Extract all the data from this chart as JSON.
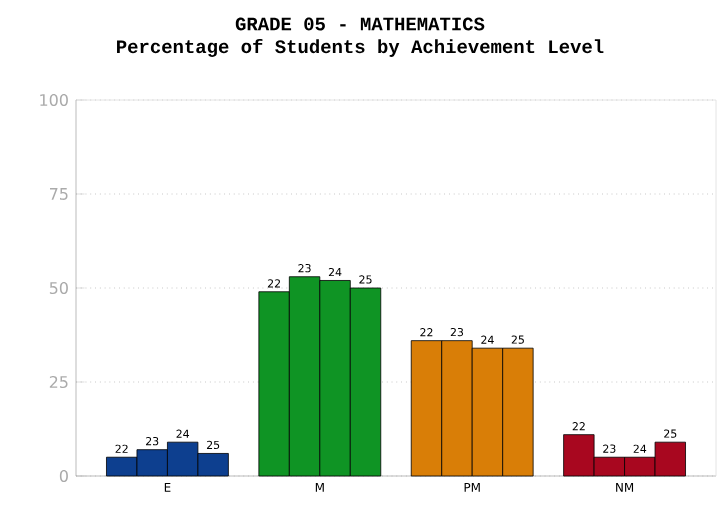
{
  "chart_data": {
    "type": "bar",
    "title": "GRADE 05 - MATHEMATICS",
    "subtitle": "Percentage of Students by Achievement Level",
    "categories": [
      "E",
      "M",
      "PM",
      "NM"
    ],
    "series": [
      {
        "name": "22",
        "colors": [
          "#0d3f8f",
          "#0f9424",
          "#d97e07",
          "#a8071f"
        ],
        "values": [
          5,
          49,
          36,
          11
        ]
      },
      {
        "name": "23",
        "colors": [
          "#0d3f8f",
          "#0f9424",
          "#d97e07",
          "#a8071f"
        ],
        "values": [
          7,
          53,
          36,
          5
        ]
      },
      {
        "name": "24",
        "colors": [
          "#0d3f8f",
          "#0f9424",
          "#d97e07",
          "#a8071f"
        ],
        "values": [
          9,
          52,
          34,
          5
        ]
      },
      {
        "name": "25",
        "colors": [
          "#0d3f8f",
          "#0f9424",
          "#d97e07",
          "#a8071f"
        ],
        "values": [
          6,
          50,
          34,
          9
        ]
      }
    ],
    "ylim": [
      0,
      100
    ],
    "yticks": [
      0,
      25,
      50,
      75,
      100
    ],
    "grid": "y"
  }
}
